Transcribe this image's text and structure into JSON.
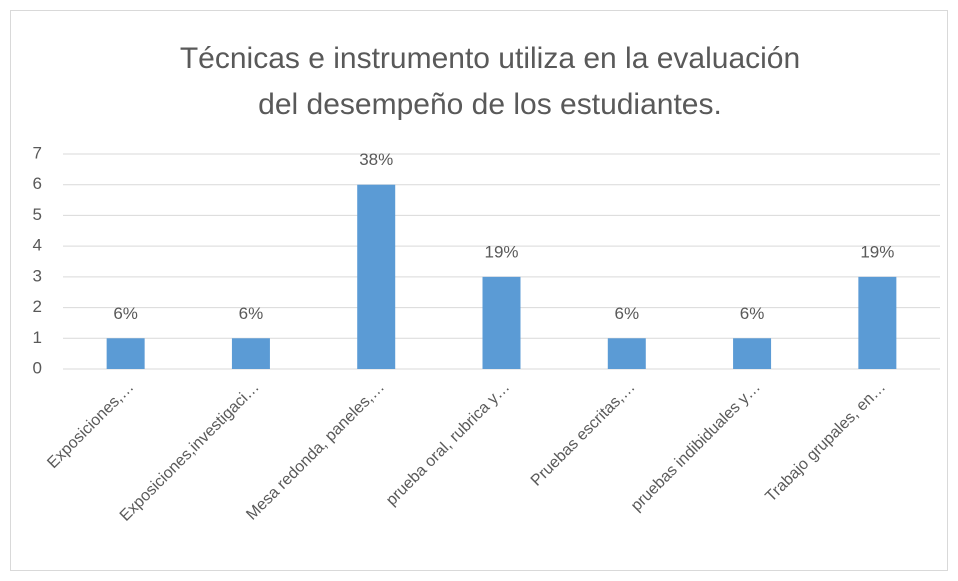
{
  "chart_data": {
    "type": "bar",
    "title": [
      "Técnicas e instrumento utiliza en la evaluación",
      "del desempeño de los estudiantes."
    ],
    "categories": [
      "Exposiciones,…",
      "Exposiciones,investigaci…",
      "Mesa redonda, paneles,…",
      "prueba oral, rubrica y…",
      "Pruebas escritas,…",
      "pruebas indibiduales y…",
      "Trabajo grupales, en…"
    ],
    "values": [
      1,
      1,
      6,
      3,
      1,
      1,
      3
    ],
    "value_labels": [
      "6%",
      "6%",
      "38%",
      "19%",
      "6%",
      "6%",
      "19%"
    ],
    "color": "#5b9bd5",
    "ylim": [
      0,
      7
    ],
    "yticks": [
      0,
      1,
      2,
      3,
      4,
      5,
      6,
      7
    ],
    "grid": true
  }
}
